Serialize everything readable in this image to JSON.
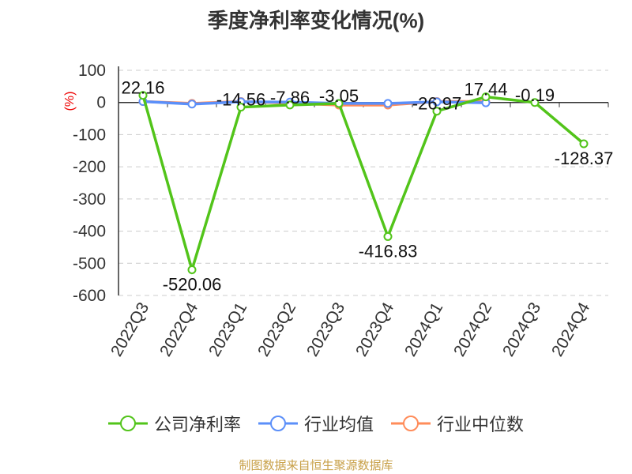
{
  "chart_data": {
    "type": "line",
    "title": "季度净利率变化情况(%)",
    "ylabel": "(%)",
    "ylim": [
      -600,
      100
    ],
    "yticks": [
      100,
      0,
      -100,
      -200,
      -300,
      -400,
      -500,
      -600
    ],
    "categories": [
      "2022Q3",
      "2022Q4",
      "2023Q1",
      "2023Q2",
      "2023Q3",
      "2023Q4",
      "2024Q1",
      "2024Q2",
      "2024Q3",
      "2024Q4"
    ],
    "series": [
      {
        "name": "公司净利率",
        "color": "#52c41a",
        "values": [
          22.16,
          -520.06,
          -14.56,
          -7.86,
          -3.05,
          -416.83,
          -26.97,
          17.44,
          -0.19,
          -128.37
        ],
        "labels": [
          "22.16",
          "-520.06",
          "-14.56",
          "-7.86",
          "-3.05",
          "-416.83",
          "-26.97",
          "17.44",
          "-0.19",
          "-128.37"
        ]
      },
      {
        "name": "行业均值",
        "color": "#5b8ff9",
        "values": [
          3,
          -5,
          2,
          1,
          -3,
          -3,
          2,
          -1,
          null,
          null
        ]
      },
      {
        "name": "行业中位数",
        "color": "#ff8c5a",
        "values": [
          3,
          -3,
          3,
          -2,
          -8,
          -8,
          3,
          3,
          null,
          null
        ]
      }
    ],
    "grid": true,
    "legend": "bottom"
  },
  "source": "制图数据来自恒生聚源数据库"
}
